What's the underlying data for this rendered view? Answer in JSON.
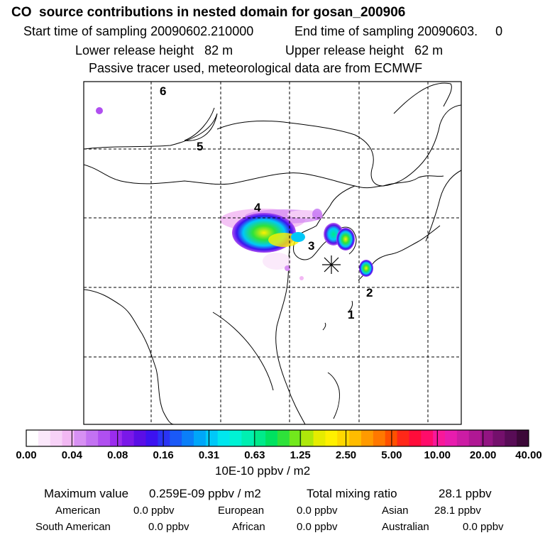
{
  "header": {
    "title": "CO  source contributions in nested domain for gosan_200906",
    "start_sampling": "Start time of sampling 20090602.210000",
    "end_sampling": "End time of sampling 20090603.     0",
    "lower_release": "Lower release height   82 m",
    "upper_release": "Upper release height   62 m",
    "tracer_note": "Passive tracer used, meteorological data are from ECMWF"
  },
  "map": {
    "trajectory_labels": [
      "1",
      "2",
      "3",
      "4",
      "5",
      "6"
    ],
    "receptor_marker": "asterisk-receptor"
  },
  "colorbar": {
    "tick_labels": [
      "0.00",
      "0.04",
      "0.08",
      "0.16",
      "0.31",
      "0.63",
      "1.25",
      "2.50",
      "5.00",
      "10.00",
      "20.00",
      "40.00"
    ],
    "colors": [
      "#ffffff",
      "#fbe8fb",
      "#f7d2f7",
      "#f2b8f3",
      "#d790f3",
      "#c372f2",
      "#b04ff0",
      "#9b2cee",
      "#7a18e9",
      "#5a0ee6",
      "#3c12f0",
      "#2a34f5",
      "#1a59f7",
      "#0b7ff8",
      "#00a6f9",
      "#00c8f8",
      "#00e6ee",
      "#00f2d4",
      "#00efb1",
      "#00ea8a",
      "#00e260",
      "#2ee23a",
      "#72e81c",
      "#aee80a",
      "#e6ec00",
      "#fff000",
      "#ffd800",
      "#ffbc00",
      "#ff9a00",
      "#ff7800",
      "#ff5000",
      "#ff2818",
      "#ff0c3a",
      "#ff0c6a",
      "#f8189a",
      "#e81cae",
      "#cc1ca4",
      "#b01894",
      "#921482",
      "#74106c",
      "#580c56",
      "#3c0838"
    ],
    "units": "10E-10 ppbv / m2"
  },
  "summary": {
    "max_label": "Maximum value",
    "max_value": "0.259E-09 ppbv / m2",
    "total_label": "Total mixing ratio",
    "total_value": "28.1 ppbv",
    "regions": [
      {
        "name": "American",
        "value": "0.0 ppbv"
      },
      {
        "name": "European",
        "value": "0.0 ppbv"
      },
      {
        "name": "Asian",
        "value": "28.1 ppbv"
      },
      {
        "name": "South American",
        "value": "0.0 ppbv"
      },
      {
        "name": "African",
        "value": "0.0 ppbv"
      },
      {
        "name": "Australian",
        "value": "0.0 ppbv"
      }
    ]
  }
}
